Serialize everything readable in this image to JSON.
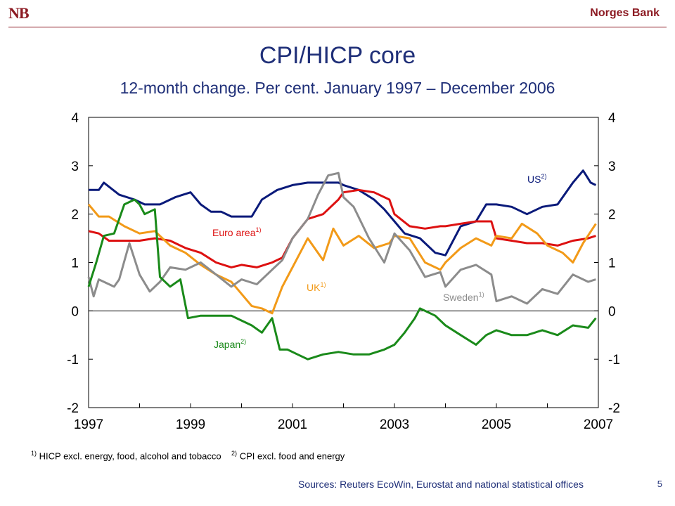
{
  "header": {
    "logo": "NB",
    "brand": "Norges Bank"
  },
  "title": "CPI/HICP core",
  "subtitle": "12-month change. Per cent. January 1997 – December 2006",
  "footnote1": {
    "marker": "1)",
    "text": "HICP excl. energy, food, alcohol and tobacco"
  },
  "footnote2": {
    "marker": "2)",
    "text": "CPI excl. food and energy"
  },
  "sources": "Sources: Reuters EcoWin, Eurostat and national statistical offices",
  "page_number": "5",
  "chart_data": {
    "type": "line",
    "xlim": [
      1997,
      2007
    ],
    "ylim": [
      -2,
      4
    ],
    "x_ticks": [
      "1997",
      "1999",
      "2001",
      "2003",
      "2005",
      "2007"
    ],
    "y_ticks": [
      "4",
      "3",
      "2",
      "1",
      "0",
      "-1",
      "-2"
    ],
    "series": [
      {
        "name": "US",
        "marker": "2)",
        "color": "#0a1a7a",
        "points": [
          [
            1997.0,
            2.5
          ],
          [
            1997.2,
            2.5
          ],
          [
            1997.3,
            2.65
          ],
          [
            1997.6,
            2.4
          ],
          [
            1997.9,
            2.3
          ],
          [
            1998.1,
            2.2
          ],
          [
            1998.4,
            2.2
          ],
          [
            1998.7,
            2.35
          ],
          [
            1999.0,
            2.45
          ],
          [
            1999.2,
            2.2
          ],
          [
            1999.4,
            2.05
          ],
          [
            1999.6,
            2.05
          ],
          [
            1999.8,
            1.95
          ],
          [
            2000.0,
            1.95
          ],
          [
            2000.2,
            1.95
          ],
          [
            2000.4,
            2.3
          ],
          [
            2000.7,
            2.5
          ],
          [
            2001.0,
            2.6
          ],
          [
            2001.3,
            2.65
          ],
          [
            2001.6,
            2.65
          ],
          [
            2001.9,
            2.65
          ],
          [
            2002.0,
            2.6
          ],
          [
            2002.3,
            2.5
          ],
          [
            2002.6,
            2.3
          ],
          [
            2002.8,
            2.1
          ],
          [
            2003.0,
            1.85
          ],
          [
            2003.2,
            1.6
          ],
          [
            2003.5,
            1.5
          ],
          [
            2003.8,
            1.2
          ],
          [
            2004.0,
            1.15
          ],
          [
            2004.3,
            1.75
          ],
          [
            2004.6,
            1.85
          ],
          [
            2004.8,
            2.2
          ],
          [
            2005.0,
            2.2
          ],
          [
            2005.3,
            2.15
          ],
          [
            2005.6,
            2.0
          ],
          [
            2005.9,
            2.15
          ],
          [
            2006.2,
            2.2
          ],
          [
            2006.5,
            2.65
          ],
          [
            2006.7,
            2.9
          ],
          [
            2006.85,
            2.65
          ],
          [
            2006.95,
            2.6
          ]
        ]
      },
      {
        "name": "Euro area",
        "marker": "1)",
        "color": "#dd1111",
        "points": [
          [
            1997.0,
            1.65
          ],
          [
            1997.2,
            1.6
          ],
          [
            1997.4,
            1.45
          ],
          [
            1997.7,
            1.45
          ],
          [
            1998.0,
            1.45
          ],
          [
            1998.3,
            1.5
          ],
          [
            1998.6,
            1.45
          ],
          [
            1998.9,
            1.3
          ],
          [
            1999.2,
            1.2
          ],
          [
            1999.5,
            1.0
          ],
          [
            1999.8,
            0.9
          ],
          [
            2000.0,
            0.95
          ],
          [
            2000.3,
            0.9
          ],
          [
            2000.6,
            1.0
          ],
          [
            2000.8,
            1.1
          ],
          [
            2001.0,
            1.5
          ],
          [
            2001.3,
            1.9
          ],
          [
            2001.6,
            2.0
          ],
          [
            2001.9,
            2.3
          ],
          [
            2002.0,
            2.45
          ],
          [
            2002.3,
            2.5
          ],
          [
            2002.6,
            2.45
          ],
          [
            2002.9,
            2.3
          ],
          [
            2003.0,
            2.0
          ],
          [
            2003.3,
            1.75
          ],
          [
            2003.6,
            1.7
          ],
          [
            2003.9,
            1.75
          ],
          [
            2004.0,
            1.75
          ],
          [
            2004.3,
            1.8
          ],
          [
            2004.6,
            1.85
          ],
          [
            2004.9,
            1.85
          ],
          [
            2005.0,
            1.5
          ],
          [
            2005.3,
            1.45
          ],
          [
            2005.6,
            1.4
          ],
          [
            2005.9,
            1.4
          ],
          [
            2006.2,
            1.35
          ],
          [
            2006.5,
            1.45
          ],
          [
            2006.8,
            1.5
          ],
          [
            2006.95,
            1.55
          ]
        ]
      },
      {
        "name": "UK",
        "marker": "1)",
        "color": "#f29a18",
        "points": [
          [
            1997.0,
            2.2
          ],
          [
            1997.2,
            1.95
          ],
          [
            1997.4,
            1.95
          ],
          [
            1997.7,
            1.75
          ],
          [
            1998.0,
            1.6
          ],
          [
            1998.3,
            1.65
          ],
          [
            1998.6,
            1.35
          ],
          [
            1998.9,
            1.2
          ],
          [
            1999.2,
            0.95
          ],
          [
            1999.5,
            0.75
          ],
          [
            1999.8,
            0.6
          ],
          [
            2000.0,
            0.35
          ],
          [
            2000.2,
            0.1
          ],
          [
            2000.4,
            0.05
          ],
          [
            2000.6,
            -0.05
          ],
          [
            2000.8,
            0.5
          ],
          [
            2001.0,
            0.9
          ],
          [
            2001.3,
            1.5
          ],
          [
            2001.6,
            1.05
          ],
          [
            2001.8,
            1.7
          ],
          [
            2002.0,
            1.35
          ],
          [
            2002.3,
            1.55
          ],
          [
            2002.6,
            1.3
          ],
          [
            2002.9,
            1.4
          ],
          [
            2003.0,
            1.55
          ],
          [
            2003.3,
            1.5
          ],
          [
            2003.6,
            1.0
          ],
          [
            2003.9,
            0.85
          ],
          [
            2004.0,
            1.0
          ],
          [
            2004.3,
            1.3
          ],
          [
            2004.6,
            1.5
          ],
          [
            2004.9,
            1.35
          ],
          [
            2005.0,
            1.55
          ],
          [
            2005.3,
            1.5
          ],
          [
            2005.5,
            1.8
          ],
          [
            2005.8,
            1.6
          ],
          [
            2006.0,
            1.35
          ],
          [
            2006.3,
            1.2
          ],
          [
            2006.5,
            1.0
          ],
          [
            2006.7,
            1.4
          ],
          [
            2006.95,
            1.8
          ]
        ]
      },
      {
        "name": "Sweden",
        "marker": "1)",
        "color": "#8c8c8c",
        "points": [
          [
            1997.0,
            0.7
          ],
          [
            1997.1,
            0.3
          ],
          [
            1997.2,
            0.65
          ],
          [
            1997.5,
            0.5
          ],
          [
            1997.6,
            0.65
          ],
          [
            1997.8,
            1.4
          ],
          [
            1998.0,
            0.75
          ],
          [
            1998.2,
            0.4
          ],
          [
            1998.4,
            0.6
          ],
          [
            1998.6,
            0.9
          ],
          [
            1998.9,
            0.85
          ],
          [
            1999.2,
            1.0
          ],
          [
            1999.5,
            0.75
          ],
          [
            1999.8,
            0.5
          ],
          [
            2000.0,
            0.65
          ],
          [
            2000.3,
            0.55
          ],
          [
            2000.6,
            0.85
          ],
          [
            2000.8,
            1.05
          ],
          [
            2001.0,
            1.5
          ],
          [
            2001.3,
            1.9
          ],
          [
            2001.5,
            2.4
          ],
          [
            2001.7,
            2.8
          ],
          [
            2001.9,
            2.85
          ],
          [
            2002.0,
            2.35
          ],
          [
            2002.2,
            2.15
          ],
          [
            2002.5,
            1.5
          ],
          [
            2002.8,
            1.0
          ],
          [
            2003.0,
            1.6
          ],
          [
            2003.3,
            1.25
          ],
          [
            2003.6,
            0.7
          ],
          [
            2003.9,
            0.8
          ],
          [
            2004.0,
            0.5
          ],
          [
            2004.3,
            0.85
          ],
          [
            2004.6,
            0.95
          ],
          [
            2004.9,
            0.75
          ],
          [
            2005.0,
            0.2
          ],
          [
            2005.3,
            0.3
          ],
          [
            2005.6,
            0.15
          ],
          [
            2005.9,
            0.45
          ],
          [
            2006.2,
            0.35
          ],
          [
            2006.5,
            0.75
          ],
          [
            2006.8,
            0.6
          ],
          [
            2006.95,
            0.65
          ]
        ]
      },
      {
        "name": "Japan",
        "marker": "2)",
        "color": "#1a8a1a",
        "points": [
          [
            1997.0,
            0.5
          ],
          [
            1997.15,
            1.0
          ],
          [
            1997.3,
            1.55
          ],
          [
            1997.5,
            1.6
          ],
          [
            1997.7,
            2.2
          ],
          [
            1997.9,
            2.3
          ],
          [
            1998.0,
            2.2
          ],
          [
            1998.1,
            2.0
          ],
          [
            1998.3,
            2.1
          ],
          [
            1998.4,
            0.7
          ],
          [
            1998.6,
            0.5
          ],
          [
            1998.8,
            0.65
          ],
          [
            1998.95,
            -0.15
          ],
          [
            1999.2,
            -0.1
          ],
          [
            1999.5,
            -0.1
          ],
          [
            1999.8,
            -0.1
          ],
          [
            2000.0,
            -0.2
          ],
          [
            2000.2,
            -0.3
          ],
          [
            2000.4,
            -0.45
          ],
          [
            2000.6,
            -0.15
          ],
          [
            2000.75,
            -0.8
          ],
          [
            2000.9,
            -0.8
          ],
          [
            2001.1,
            -0.9
          ],
          [
            2001.3,
            -1.0
          ],
          [
            2001.6,
            -0.9
          ],
          [
            2001.9,
            -0.85
          ],
          [
            2002.2,
            -0.9
          ],
          [
            2002.5,
            -0.9
          ],
          [
            2002.8,
            -0.8
          ],
          [
            2003.0,
            -0.7
          ],
          [
            2003.2,
            -0.45
          ],
          [
            2003.4,
            -0.15
          ],
          [
            2003.5,
            0.05
          ],
          [
            2003.8,
            -0.1
          ],
          [
            2004.0,
            -0.3
          ],
          [
            2004.3,
            -0.5
          ],
          [
            2004.6,
            -0.7
          ],
          [
            2004.8,
            -0.5
          ],
          [
            2005.0,
            -0.4
          ],
          [
            2005.3,
            -0.5
          ],
          [
            2005.6,
            -0.5
          ],
          [
            2005.9,
            -0.4
          ],
          [
            2006.2,
            -0.5
          ],
          [
            2006.5,
            -0.3
          ],
          [
            2006.8,
            -0.35
          ],
          [
            2006.95,
            -0.15
          ]
        ]
      }
    ]
  }
}
